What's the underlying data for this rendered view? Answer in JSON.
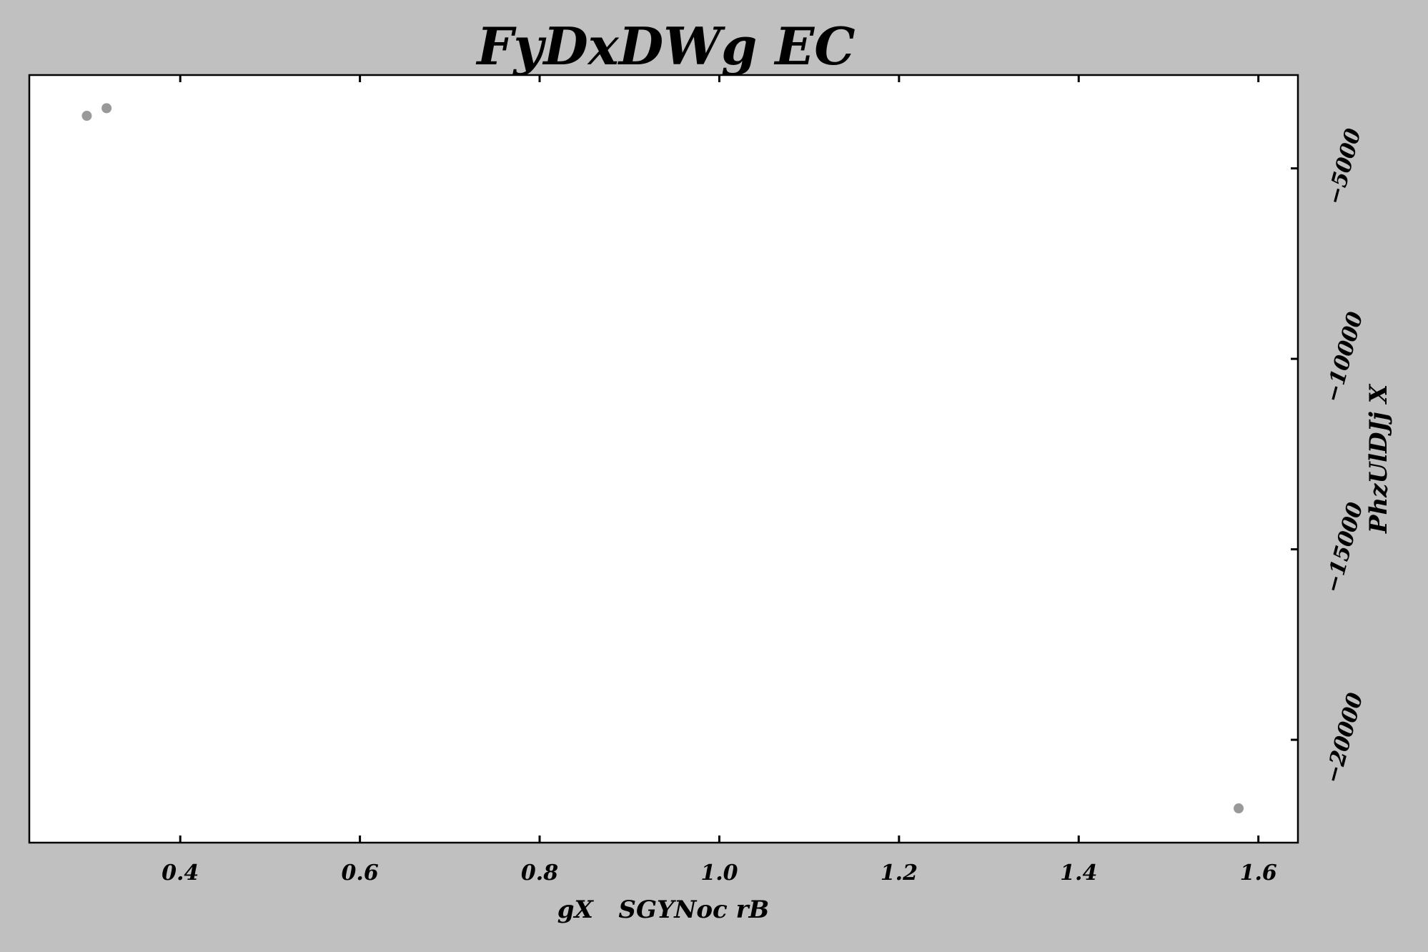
{
  "chart_data": {
    "type": "scatter",
    "title": "FyDxDWg EC",
    "xlabel": "gX   SGYNoc rB",
    "ylabel": "PhzUlDJj X",
    "xlim": [
      0.232,
      1.644
    ],
    "ylim": [
      -22700,
      -2550
    ],
    "x_ticks": [
      0.4,
      0.6,
      0.8,
      1.0,
      1.2,
      1.4,
      1.6
    ],
    "x_tick_labels": [
      "0.4",
      "0.6",
      "0.8",
      "1.0",
      "1.2",
      "1.4",
      "1.6"
    ],
    "y_ticks": [
      -5000,
      -10000,
      -15000,
      -20000
    ],
    "y_tick_labels": [
      "−5000",
      "−10000",
      "−15000",
      "−20000"
    ],
    "y_axis_position": "right",
    "grid": false,
    "points": [
      {
        "x": 0.296,
        "y": -3620
      },
      {
        "x": 0.318,
        "y": -3420
      },
      {
        "x": 1.578,
        "y": -21800
      }
    ],
    "marker_color": "#999999",
    "background_color": "#c0c0c0",
    "plot_background": "#ffffff"
  }
}
